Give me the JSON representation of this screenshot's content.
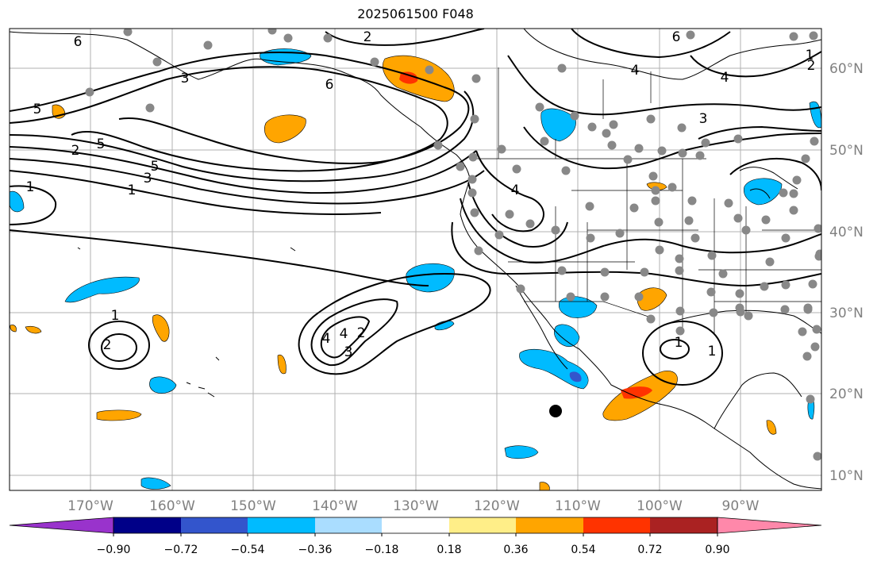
{
  "title": "2025061500 F048",
  "latitude_labels": [
    "60°N",
    "50°N",
    "40°N",
    "30°N",
    "20°N",
    "10°N"
  ],
  "longitude_labels": [
    "170°W",
    "160°W",
    "150°W",
    "140°W",
    "130°W",
    "120°W",
    "110°W",
    "100°W",
    "90°W"
  ],
  "colorbar": {
    "tick_labels": [
      "−0.90",
      "−0.72",
      "−0.54",
      "−0.36",
      "−0.18",
      "0.18",
      "0.36",
      "0.54",
      "0.72",
      "0.90"
    ],
    "colors": [
      "#9933cc",
      "#000088",
      "#3355cc",
      "#00bbff",
      "#aaddff",
      "#ffffff",
      "#ffee88",
      "#ffa500",
      "#ff3300",
      "#aa2222",
      "#ff88aa"
    ]
  },
  "contour_labels": [
    "6",
    "2",
    "6",
    "4",
    "4",
    "5",
    "5",
    "6",
    "2",
    "3",
    "1",
    "5",
    "3",
    "1",
    "4",
    "1",
    "2",
    "3",
    "1",
    "1",
    "2",
    "4",
    "4",
    "3",
    "2",
    "1"
  ],
  "colors": {
    "grid": "#b0b0b0",
    "coast": "#000000",
    "contour": "#000000",
    "station": "#888888",
    "marker": "#000000"
  }
}
